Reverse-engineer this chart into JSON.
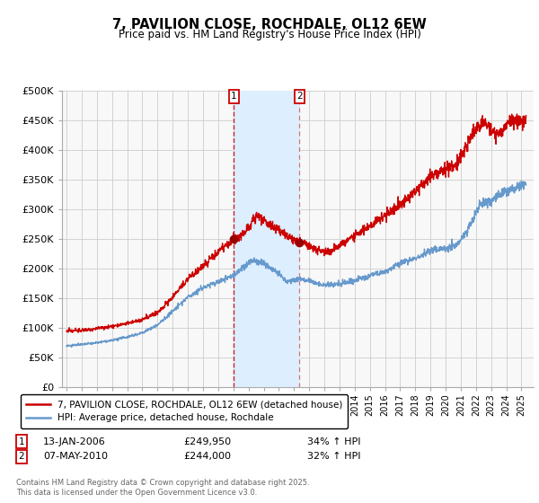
{
  "title": "7, PAVILION CLOSE, ROCHDALE, OL12 6EW",
  "subtitle": "Price paid vs. HM Land Registry's House Price Index (HPI)",
  "ylabel_ticks": [
    "£0",
    "£50K",
    "£100K",
    "£150K",
    "£200K",
    "£250K",
    "£300K",
    "£350K",
    "£400K",
    "£450K",
    "£500K"
  ],
  "ytick_values": [
    0,
    50000,
    100000,
    150000,
    200000,
    250000,
    300000,
    350000,
    400000,
    450000,
    500000
  ],
  "ylim": [
    0,
    500000
  ],
  "xlim_start": 1994.7,
  "xlim_end": 2025.8,
  "legend_line1": "7, PAVILION CLOSE, ROCHDALE, OL12 6EW (detached house)",
  "legend_line2": "HPI: Average price, detached house, Rochdale",
  "line1_color": "#cc0000",
  "line2_color": "#6699cc",
  "shade_color": "#ddeeff",
  "p1_year": 2006,
  "p1_month": 1,
  "p1_day": 13,
  "p2_year": 2010,
  "p2_month": 5,
  "p2_day": 7,
  "p1_price": 249950,
  "p2_price": 244000,
  "annotation1_date": "13-JAN-2006",
  "annotation1_price": "£249,950",
  "annotation1_hpi": "34% ↑ HPI",
  "annotation2_date": "07-MAY-2010",
  "annotation2_price": "£244,000",
  "annotation2_hpi": "32% ↑ HPI",
  "footer": "Contains HM Land Registry data © Crown copyright and database right 2025.\nThis data is licensed under the Open Government Licence v3.0.",
  "bg_color": "#ffffff",
  "plot_bg_color": "#f8f8f8",
  "grid_color": "#cccccc"
}
